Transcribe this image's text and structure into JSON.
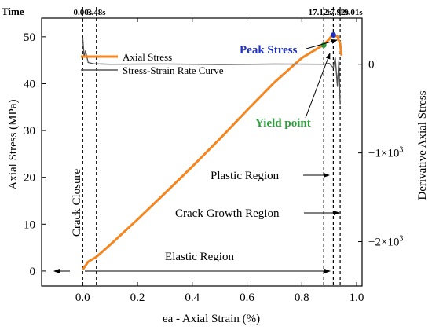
{
  "chart_data": {
    "type": "line",
    "xlabel": "ea - Axial Strain (%)",
    "ylabel": "Axial Stress (MPa)",
    "y2label": "Derivative Axial Stress",
    "xlim": [
      -0.15,
      1.02
    ],
    "ylim": [
      -3.2,
      54
    ],
    "y2lim": [
      -2500,
      520
    ],
    "x_ticks": [
      {
        "v": 0.0,
        "label": "0.0"
      },
      {
        "v": 0.2,
        "label": "0.2"
      },
      {
        "v": 0.4,
        "label": "0.4"
      },
      {
        "v": 0.6,
        "label": "0.6"
      },
      {
        "v": 0.8,
        "label": "0.8"
      },
      {
        "v": 1.0,
        "label": "1.0"
      }
    ],
    "y_ticks": [
      {
        "v": 0,
        "label": "0"
      },
      {
        "v": 10,
        "label": "10"
      },
      {
        "v": 20,
        "label": "20"
      },
      {
        "v": 30,
        "label": "30"
      },
      {
        "v": 40,
        "label": "40"
      },
      {
        "v": 50,
        "label": "50"
      }
    ],
    "y2_ticks": [
      {
        "v": 0,
        "label": "0"
      },
      {
        "v": -1000,
        "label": "−1×10",
        "sup": "3"
      },
      {
        "v": -2000,
        "label": "−2×10",
        "sup": "3"
      }
    ],
    "series": [
      {
        "name": "Axial Stress",
        "axis": "left",
        "color": "#f5861f",
        "points": [
          [
            0.0,
            0.3
          ],
          [
            0.02,
            2.0
          ],
          [
            0.05,
            3.0
          ],
          [
            0.1,
            5.6
          ],
          [
            0.2,
            11.0
          ],
          [
            0.3,
            16.6
          ],
          [
            0.4,
            22.3
          ],
          [
            0.5,
            28.2
          ],
          [
            0.6,
            34.3
          ],
          [
            0.7,
            40.3
          ],
          [
            0.8,
            45.5
          ],
          [
            0.88,
            48.3
          ],
          [
            0.9,
            49.5
          ],
          [
            0.91,
            50.3
          ],
          [
            0.93,
            50.1
          ],
          [
            0.94,
            48.5
          ],
          [
            0.945,
            46.0
          ]
        ]
      },
      {
        "name": "Stress-Strain Rate Curve",
        "axis": "right",
        "color": "#555555",
        "points": [
          [
            0.0,
            300
          ],
          [
            0.005,
            80
          ],
          [
            0.01,
            150
          ],
          [
            0.02,
            20
          ],
          [
            0.04,
            5
          ],
          [
            0.1,
            0
          ],
          [
            0.3,
            3
          ],
          [
            0.5,
            -3
          ],
          [
            0.7,
            2
          ],
          [
            0.88,
            0
          ],
          [
            0.9,
            10
          ],
          [
            0.915,
            -40
          ],
          [
            0.922,
            80
          ],
          [
            0.93,
            -250
          ],
          [
            0.935,
            40
          ],
          [
            0.94,
            -450
          ]
        ]
      }
    ],
    "markers": [
      {
        "name": "Yield point",
        "x": 0.88,
        "y": 48.2,
        "color": "#2e9b3c"
      },
      {
        "name": "Peak Stress",
        "x": 0.915,
        "y": 50.4,
        "color": "#1f2fbf"
      }
    ],
    "vlines": [
      {
        "x": 0.0
      },
      {
        "x": 0.05
      },
      {
        "x": 0.88
      },
      {
        "x": 0.915
      },
      {
        "x": 0.94
      }
    ],
    "time_label": "Time",
    "time_marks": [
      {
        "x": 0.0,
        "label": "0.00s"
      },
      {
        "x": 0.05,
        "label": "3.48s"
      },
      {
        "x": 0.88,
        "label": "17.12s"
      },
      {
        "x": 0.915,
        "label": "17.92s"
      },
      {
        "x": 0.94,
        "label": "19.01s"
      }
    ],
    "annotations": {
      "peak_stress": "Peak Stress",
      "yield_point": "Yield point",
      "crack_closure": "Crack Closure",
      "plastic_region": "Plastic Region",
      "crack_growth_region": "Crack Growth Region",
      "elastic_region": "Elastic Region"
    },
    "legend_position": "upper-left",
    "grid": false
  }
}
